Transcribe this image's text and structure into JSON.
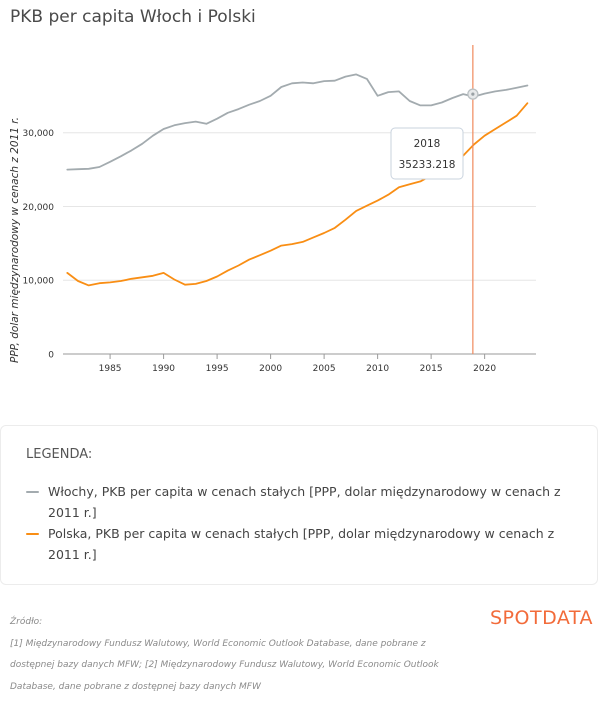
{
  "title": "PKB per capita Włoch i Polski",
  "chart_data": {
    "type": "line",
    "ylabel": "PPP, dolar międzynarodowy w cenach z 2011 r.",
    "xlim": [
      1980.6,
      2024.8
    ],
    "ylim": [
      0,
      38500
    ],
    "x_ticks": [
      "1985",
      "1990",
      "1995",
      "2000",
      "2005",
      "2010",
      "2015",
      "2020"
    ],
    "y_ticks": [
      "0",
      "10,000",
      "20,000",
      "30,000"
    ],
    "grid": "horizontal",
    "legend_position": "bottom",
    "tooltip": {
      "year": "2018",
      "value": "35233.218",
      "series_index": 0
    },
    "cursor_x": 2018.9,
    "series": [
      {
        "name": "Włochy, PKB per capita w cenach stałych [PPP, dolar międzynarodowy w cenach z 2011 r.]",
        "color": "#a3abaf",
        "x": [
          1981,
          1982,
          1983,
          1984,
          1985,
          1986,
          1987,
          1988,
          1989,
          1990,
          1991,
          1992,
          1993,
          1994,
          1995,
          1996,
          1997,
          1998,
          1999,
          2000,
          2001,
          2002,
          2003,
          2004,
          2005,
          2006,
          2007,
          2008,
          2009,
          2010,
          2011,
          2012,
          2013,
          2014,
          2015,
          2016,
          2017,
          2018,
          2019,
          2020,
          2021,
          2022,
          2023,
          2024
        ],
        "values": [
          25000,
          25050,
          25100,
          25350,
          26050,
          26800,
          27600,
          28500,
          29600,
          30500,
          31000,
          31300,
          31500,
          31200,
          31900,
          32700,
          33200,
          33800,
          34300,
          35000,
          36200,
          36700,
          36800,
          36700,
          37000,
          37050,
          37600,
          37900,
          37300,
          35000,
          35500,
          35600,
          34300,
          33700,
          33700,
          34100,
          34700,
          35233,
          34900,
          35300,
          35600,
          35800,
          36100,
          36400
        ]
      },
      {
        "name": "Polska, PKB per capita w cenach stałych [PPP, dolar międzynarodowy w cenach z 2011 r.]",
        "color": "#f98e14",
        "x": [
          1981,
          1982,
          1983,
          1984,
          1985,
          1986,
          1987,
          1988,
          1989,
          1990,
          1991,
          1992,
          1993,
          1994,
          1995,
          1996,
          1997,
          1998,
          1999,
          2000,
          2001,
          2002,
          2003,
          2004,
          2005,
          2006,
          2007,
          2008,
          2009,
          2010,
          2011,
          2012,
          2013,
          2014,
          2015,
          2016,
          2017,
          2018,
          2019,
          2020,
          2021,
          2022,
          2023,
          2024
        ],
        "values": [
          11000,
          9900,
          9300,
          9600,
          9700,
          9900,
          10200,
          10400,
          10600,
          11000,
          10100,
          9400,
          9500,
          9900,
          10500,
          11300,
          12000,
          12800,
          13400,
          14000,
          14700,
          14900,
          15200,
          15800,
          16400,
          17100,
          18200,
          19400,
          20100,
          20800,
          21600,
          22600,
          23000,
          23400,
          24200,
          25000,
          26000,
          26900,
          28400,
          29600,
          30500,
          31400,
          32300,
          34000
        ]
      }
    ]
  },
  "legend": {
    "title": "LEGENDA:",
    "items": [
      {
        "label": "Włochy, PKB per capita w cenach stałych [PPP, dolar międzynarodowy w cenach z 2011 r.]",
        "color": "#a3abaf"
      },
      {
        "label": "Polska, PKB per capita w cenach stałych [PPP, dolar międzynarodowy w cenach z 2011 r.]",
        "color": "#f98e14"
      }
    ]
  },
  "source": {
    "heading": "Źródło:",
    "text": "[1] Międzynarodowy Fundusz Walutowy, World Economic Outlook Database, dane pobrane z dostępnej bazy danych MFW; [2] Międzynarodowy Fundusz Walutowy, World Economic Outlook Database, dane pobrane z dostępnej bazy danych MFW"
  },
  "logo": {
    "text": "SPOTDATA",
    "color": "#f26b3a"
  }
}
